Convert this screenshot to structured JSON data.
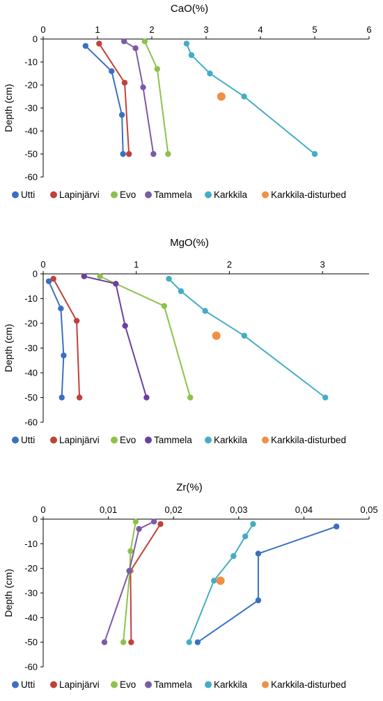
{
  "chart_data": [
    {
      "type": "line",
      "title": "CaO(%)",
      "xlabel": "",
      "ylabel": "Depth (cm)",
      "xlim": [
        0,
        6
      ],
      "ylim": [
        -60,
        0
      ],
      "x_ticks": [
        "0",
        "1",
        "2",
        "3",
        "4",
        "5",
        "6"
      ],
      "y_ticks": [
        "0",
        "-10",
        "-20",
        "-30",
        "-40",
        "-50",
        "-60"
      ],
      "grid": false,
      "legend": "bottom",
      "series": [
        {
          "name": "Utti",
          "color": "#3a6fc2",
          "points": [
            [
              0.78,
              -3
            ],
            [
              1.26,
              -14
            ],
            [
              1.45,
              -33
            ],
            [
              1.47,
              -50
            ]
          ]
        },
        {
          "name": "Lapinjärvi",
          "color": "#c0403a",
          "points": [
            [
              1.03,
              -2
            ],
            [
              1.5,
              -19
            ],
            [
              1.58,
              -50
            ]
          ]
        },
        {
          "name": "Evo",
          "color": "#8cc24a",
          "points": [
            [
              1.87,
              -1
            ],
            [
              2.1,
              -13
            ],
            [
              2.3,
              -50
            ]
          ]
        },
        {
          "name": "Tammela",
          "color": "#7b5aa6",
          "points": [
            [
              1.49,
              -1
            ],
            [
              1.7,
              -4
            ],
            [
              1.84,
              -21
            ],
            [
              2.03,
              -50
            ]
          ]
        },
        {
          "name": "Karkkila",
          "color": "#43adc5",
          "points": [
            [
              2.64,
              -2
            ],
            [
              2.73,
              -7
            ],
            [
              3.07,
              -15
            ],
            [
              3.7,
              -25
            ],
            [
              5.0,
              -50
            ]
          ]
        },
        {
          "name": "Karkkila-disturbed",
          "color": "#f18f43",
          "points": [
            [
              3.28,
              -25
            ]
          ]
        }
      ]
    },
    {
      "type": "line",
      "title": "MgO(%)",
      "xlabel": "",
      "ylabel": "Depth (cm)",
      "xlim": [
        0,
        3.5
      ],
      "ylim": [
        -60,
        0
      ],
      "x_ticks": [
        "0",
        "1",
        "2",
        "3"
      ],
      "y_ticks": [
        "0",
        "-10",
        "-20",
        "-30",
        "-40",
        "-50",
        "-60"
      ],
      "grid": false,
      "legend": "bottom",
      "series": [
        {
          "name": "Utti",
          "color": "#3a6fc2",
          "points": [
            [
              0.06,
              -3
            ],
            [
              0.19,
              -14
            ],
            [
              0.22,
              -33
            ],
            [
              0.2,
              -50
            ]
          ]
        },
        {
          "name": "Lapinjärvi",
          "color": "#c0403a",
          "points": [
            [
              0.11,
              -2
            ],
            [
              0.36,
              -19
            ],
            [
              0.39,
              -50
            ]
          ]
        },
        {
          "name": "Evo",
          "color": "#8cc24a",
          "points": [
            [
              0.61,
              -1
            ],
            [
              1.3,
              -13
            ],
            [
              1.58,
              -50
            ]
          ]
        },
        {
          "name": "Tammela",
          "color": "#6b3fa0",
          "points": [
            [
              0.44,
              -1
            ],
            [
              0.78,
              -4
            ],
            [
              0.88,
              -21
            ],
            [
              1.11,
              -50
            ]
          ]
        },
        {
          "name": "Karkkila",
          "color": "#43adc5",
          "points": [
            [
              1.35,
              -2
            ],
            [
              1.48,
              -7
            ],
            [
              1.74,
              -15
            ],
            [
              2.16,
              -25
            ],
            [
              3.03,
              -50
            ]
          ]
        },
        {
          "name": "Karkkila-disturbed",
          "color": "#f18f43",
          "points": [
            [
              1.86,
              -25
            ]
          ]
        }
      ]
    },
    {
      "type": "line",
      "title": "Zr(%)",
      "xlabel": "",
      "ylabel": "Depth (cm)",
      "xlim": [
        0,
        0.05
      ],
      "ylim": [
        -60,
        0
      ],
      "x_ticks": [
        "0",
        "0,01",
        "0,02",
        "0,03",
        "0,04",
        "0,05"
      ],
      "y_ticks": [
        "0",
        "-10",
        "-20",
        "-30",
        "-40",
        "-50",
        "-60"
      ],
      "grid": false,
      "legend": "bottom",
      "series": [
        {
          "name": "Utti",
          "color": "#3a6fc2",
          "points": [
            [
              0.045,
              -3
            ],
            [
              0.033,
              -14
            ],
            [
              0.033,
              -33
            ],
            [
              0.0237,
              -50
            ]
          ]
        },
        {
          "name": "Lapinjärvi",
          "color": "#c0403a",
          "points": [
            [
              0.018,
              -2
            ],
            [
              0.0134,
              -21
            ],
            [
              0.0135,
              -50
            ]
          ]
        },
        {
          "name": "Evo",
          "color": "#8cc24a",
          "points": [
            [
              0.0142,
              -1
            ],
            [
              0.0134,
              -13
            ],
            [
              0.0133,
              -21
            ],
            [
              0.0123,
              -50
            ]
          ]
        },
        {
          "name": "Tammela",
          "color": "#7b5aa6",
          "points": [
            [
              0.017,
              -1
            ],
            [
              0.0147,
              -4
            ],
            [
              0.0132,
              -21
            ],
            [
              0.0094,
              -50
            ]
          ]
        },
        {
          "name": "Karkkila",
          "color": "#43adc5",
          "points": [
            [
              0.0322,
              -2
            ],
            [
              0.031,
              -7
            ],
            [
              0.0292,
              -15
            ],
            [
              0.0262,
              -25
            ],
            [
              0.0224,
              -50
            ]
          ]
        },
        {
          "name": "Karkkila-disturbed",
          "color": "#f18f43",
          "points": [
            [
              0.0272,
              -25
            ]
          ]
        }
      ]
    }
  ]
}
